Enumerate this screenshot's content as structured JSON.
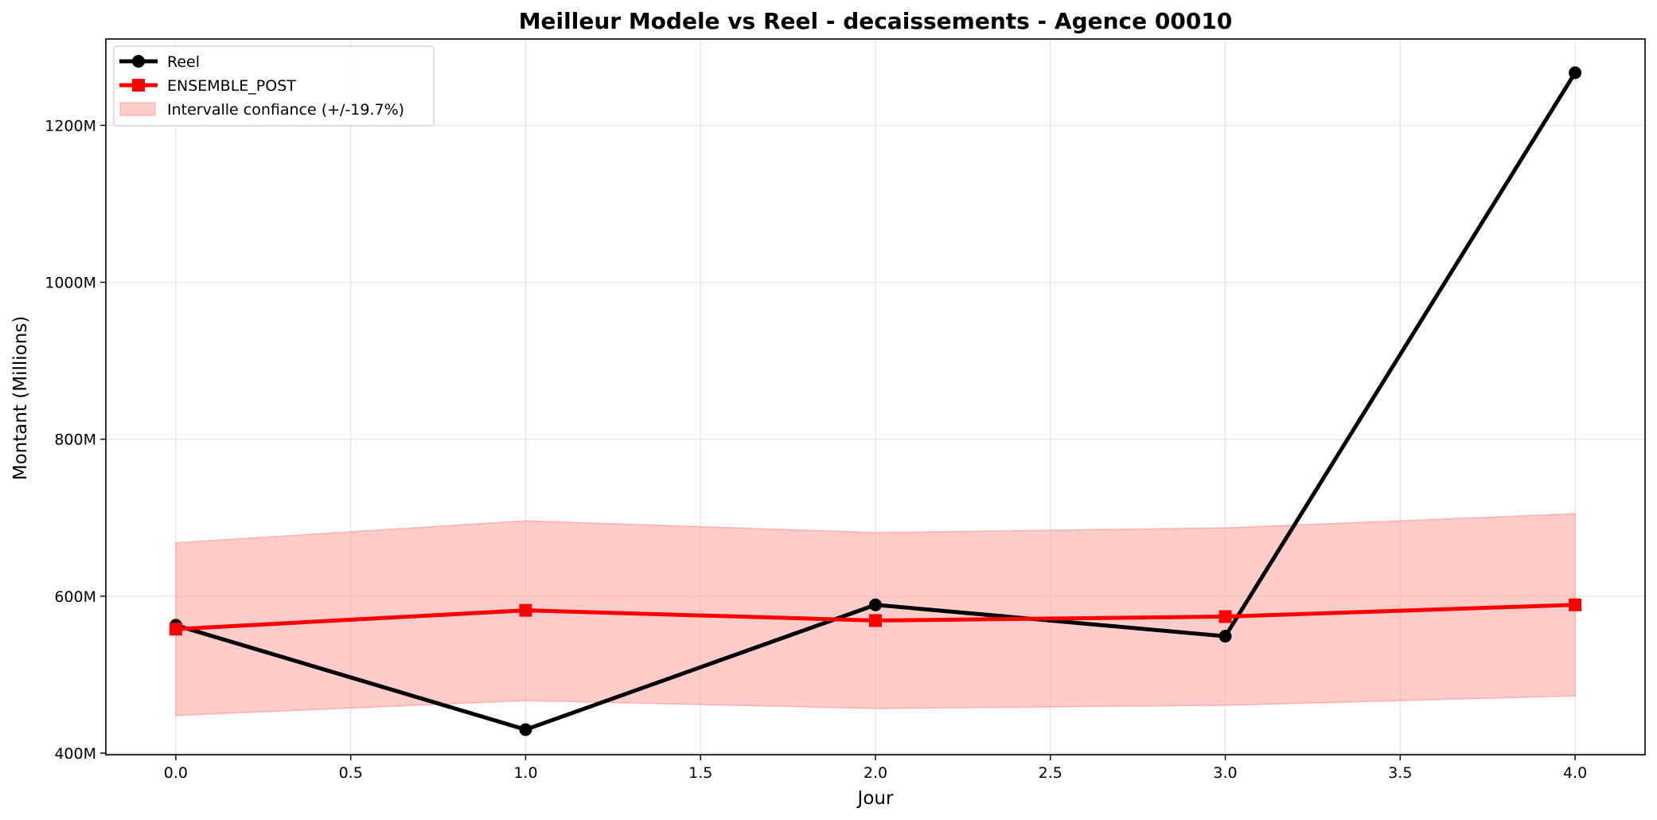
{
  "chart_data": {
    "type": "line",
    "title": "Meilleur Modele vs Reel - decaissements - Agence 00010",
    "xlabel": "Jour",
    "ylabel": "Montant (Millions)",
    "x": [
      0,
      1,
      2,
      3,
      4
    ],
    "xlim": [
      -0.2,
      4.2
    ],
    "ylim": [
      398,
      1310
    ],
    "x_ticks": [
      0.0,
      0.5,
      1.0,
      1.5,
      2.0,
      2.5,
      3.0,
      3.5,
      4.0
    ],
    "x_tick_labels": [
      "0.0",
      "0.5",
      "1.0",
      "1.5",
      "2.0",
      "2.5",
      "3.0",
      "3.5",
      "4.0"
    ],
    "y_ticks": [
      400,
      600,
      800,
      1000,
      1200
    ],
    "y_tick_labels": [
      "400M",
      "600M",
      "800M",
      "1000M",
      "1200M"
    ],
    "grid": true,
    "legend_position": "top-left",
    "series": [
      {
        "name": "Reel",
        "values": [
          563,
          430,
          589,
          549,
          1267
        ],
        "color": "#000000",
        "marker": "circle"
      },
      {
        "name": "ENSEMBLE_POST",
        "values": [
          558,
          582,
          569,
          574,
          589
        ],
        "color": "#ff0000",
        "marker": "square"
      }
    ],
    "band": {
      "name": "Intervalle confiance (+/-19.7%)",
      "lower": [
        448,
        467,
        457,
        461,
        473
      ],
      "upper": [
        668,
        696,
        681,
        687,
        705
      ],
      "color": "#ff9999"
    }
  }
}
